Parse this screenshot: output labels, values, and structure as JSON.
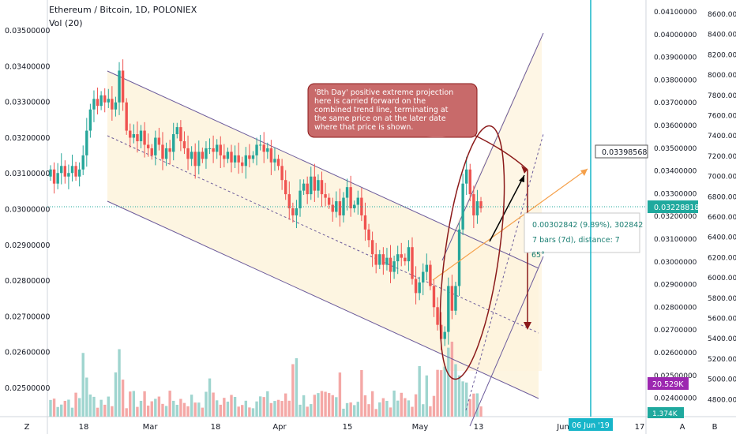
{
  "header": {
    "title": "Ethereum / Bitcoin, 1D, POLONIEX",
    "volume_label": "Vol (20)"
  },
  "annotation": {
    "callout": "'8th Day' positive extreme projection here is carried forward on the combined trend line, terminating at the same price on at the later date where that price is shown.",
    "measure_change": "0.00302842 (9.89%), 302842",
    "measure_bars": "7 bars (7d), distance: 7",
    "measure_angle": "65°",
    "target_price": "0.03398568",
    "current_price": "0.03228818",
    "volume_value": "20.529K",
    "volume_small": "1.374K",
    "date_marker": "06 Jun '19"
  },
  "colors": {
    "up": "#26a69a",
    "down": "#ef5350",
    "up_vol": "#9fd5cf",
    "down_vol": "#f4a8a6",
    "channel_fill": "#fdf3dc",
    "channel_line": "#6c5b9b",
    "trend_orange": "#f5a04a",
    "ellipse": "#8b1a1a",
    "callout_bg": "#c86a6a",
    "vertical_line": "#17b5c9",
    "price_badge": "#1fa99e",
    "vol_badge": "#9c27b0"
  },
  "chart_data": {
    "type": "candlestick",
    "title": "Ethereum / Bitcoin, 1D, POLONIEX",
    "left_axis": {
      "ticks": [
        "0.03500000",
        "0.03400000",
        "0.03300000",
        "0.03200000",
        "0.03100000",
        "0.03000000",
        "0.02900000",
        "0.02800000",
        "0.02700000",
        "0.02600000",
        "0.02500000"
      ],
      "range": [
        0.024,
        0.0358
      ]
    },
    "right_axis_price": {
      "ticks": [
        "0.04100000",
        "0.04000000",
        "0.03900000",
        "0.03800000",
        "0.03700000",
        "0.03600000",
        "0.03500000",
        "0.03400000",
        "0.03300000",
        "0.03200000",
        "0.03100000",
        "0.03000000",
        "0.02900000",
        "0.02800000",
        "0.02700000",
        "0.02600000",
        "0.02500000",
        "0.02400000"
      ]
    },
    "right_axis_usd": {
      "ticks": [
        "8600.00",
        "8400.00",
        "8200.00",
        "8000.00",
        "7800.00",
        "7600.00",
        "7400.00",
        "7200.00",
        "7000.00",
        "6800.00",
        "6600.00",
        "6400.00",
        "6200.00",
        "6000.00",
        "5800.00",
        "5600.00",
        "5400.00",
        "5200.00",
        "5000.00",
        "4800.00"
      ]
    },
    "x_ticks": [
      "Z",
      "18",
      "Mar",
      "18",
      "Apr",
      "15",
      "May",
      "13",
      "Jun",
      "17",
      "A",
      "B"
    ],
    "start_date": "2019-02-05",
    "close": [
      0.031,
      0.0306,
      0.0309,
      0.0311,
      0.0308,
      0.0309,
      0.0311,
      0.0308,
      0.031,
      0.0314,
      0.0321,
      0.0327,
      0.033,
      0.0328,
      0.0331,
      0.0329,
      0.033,
      0.0327,
      0.0329,
      0.0338,
      0.0329,
      0.0321,
      0.0319,
      0.032,
      0.0318,
      0.0321,
      0.0317,
      0.0316,
      0.0314,
      0.0319,
      0.0317,
      0.0313,
      0.0316,
      0.0315,
      0.032,
      0.0322,
      0.0318,
      0.0316,
      0.0313,
      0.0315,
      0.0311,
      0.0315,
      0.0313,
      0.0316,
      0.0316,
      0.0315,
      0.0317,
      0.0314,
      0.0313,
      0.0315,
      0.0312,
      0.0314,
      0.0312,
      0.0311,
      0.0314,
      0.0313,
      0.0314,
      0.0317,
      0.0317,
      0.0315,
      0.0316,
      0.0312,
      0.0313,
      0.0311,
      0.0307,
      0.0303,
      0.0299,
      0.0297,
      0.0299,
      0.0304,
      0.0306,
      0.0303,
      0.0308,
      0.0304,
      0.0307,
      0.0303,
      0.0302,
      0.03,
      0.0298,
      0.0301,
      0.0297,
      0.0302,
      0.0305,
      0.0299,
      0.03,
      0.0302,
      0.0297,
      0.0293,
      0.029,
      0.0286,
      0.0283,
      0.0286,
      0.0283,
      0.0285,
      0.0281,
      0.0284,
      0.0286,
      0.0285,
      0.0284,
      0.0288,
      0.0279,
      0.0275,
      0.0278,
      0.0281,
      0.0283,
      0.0277,
      0.0271,
      0.0266,
      0.0262,
      0.0264,
      0.0277,
      0.027,
      0.0277,
      0.0293,
      0.0306,
      0.031,
      0.0303,
      0.0297,
      0.0301,
      0.0299
    ],
    "volume_max": 25000
  }
}
